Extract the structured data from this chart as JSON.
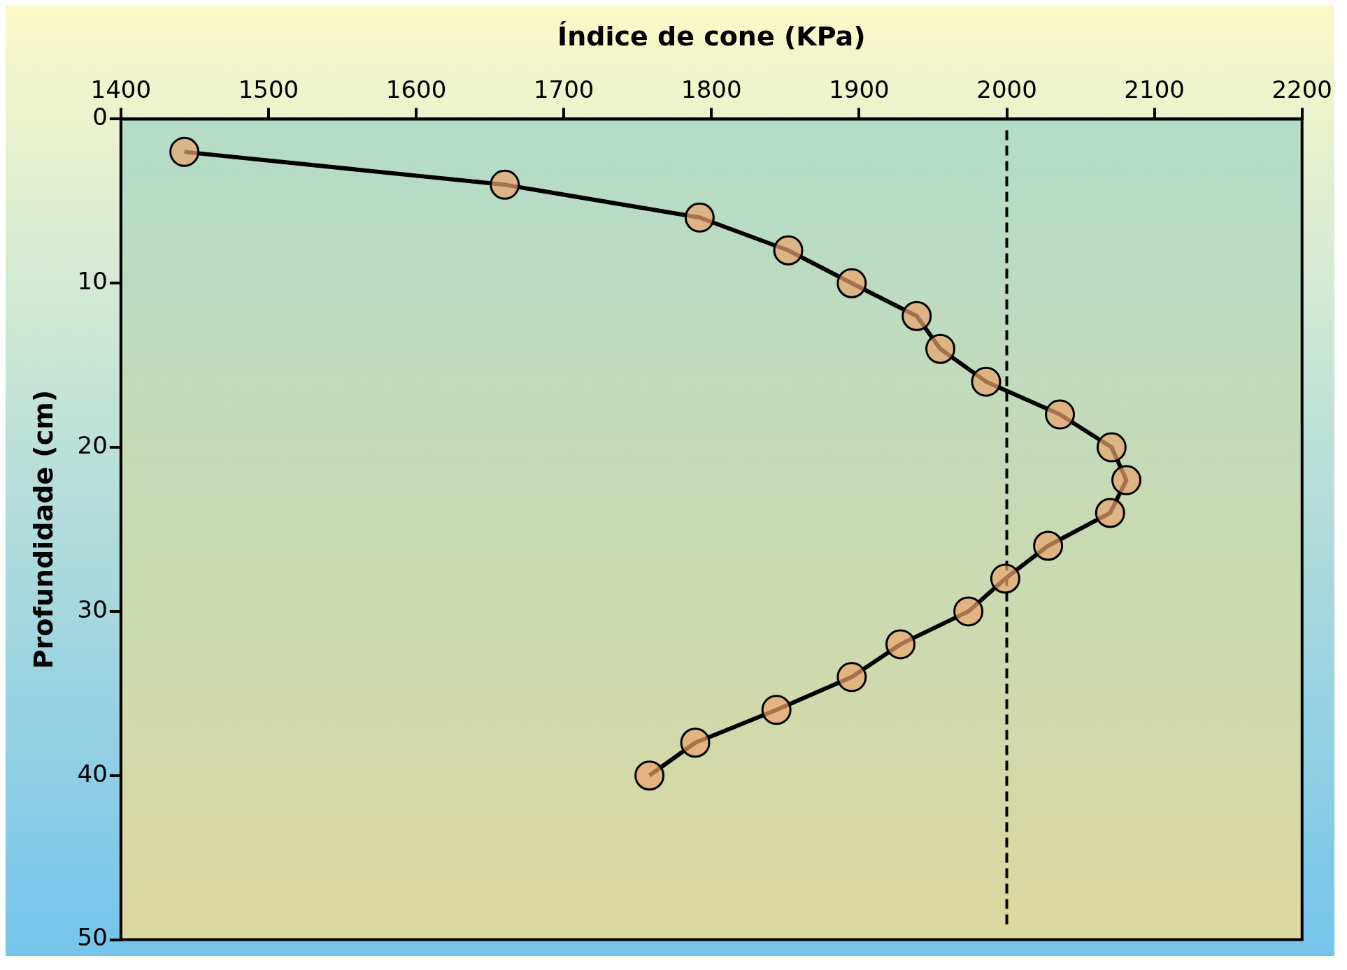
{
  "chart_data": {
    "type": "line",
    "xlabel": "Índice de cone (KPa)",
    "ylabel": "Profundidade (cm)",
    "x": [
      1443,
      1660,
      1792,
      1852,
      1895,
      1939,
      1955,
      1986,
      2036,
      2071,
      2081,
      2070,
      2028,
      1999,
      1974,
      1928,
      1895,
      1844,
      1789,
      1758
    ],
    "series": [
      {
        "color": "#000000",
        "values": [
          2,
          4,
          6,
          8,
          10,
          12,
          14,
          16,
          18,
          20,
          22,
          24,
          26,
          28,
          30,
          32,
          34,
          36,
          38,
          40
        ]
      }
    ],
    "xlim": [
      1400,
      2200
    ],
    "xticks": [
      1400,
      1500,
      1600,
      1700,
      1800,
      1900,
      2000,
      2100,
      2200
    ],
    "ylim": [
      50,
      0
    ],
    "yticks": [
      0,
      10,
      20,
      30,
      40,
      50
    ],
    "ref_lines": [
      {
        "axis": "x",
        "value": 2000,
        "color": "#000000",
        "line_style": "dashed"
      }
    ],
    "marker": "circle",
    "line_style": "solid",
    "grid": false,
    "legend": false
  }
}
